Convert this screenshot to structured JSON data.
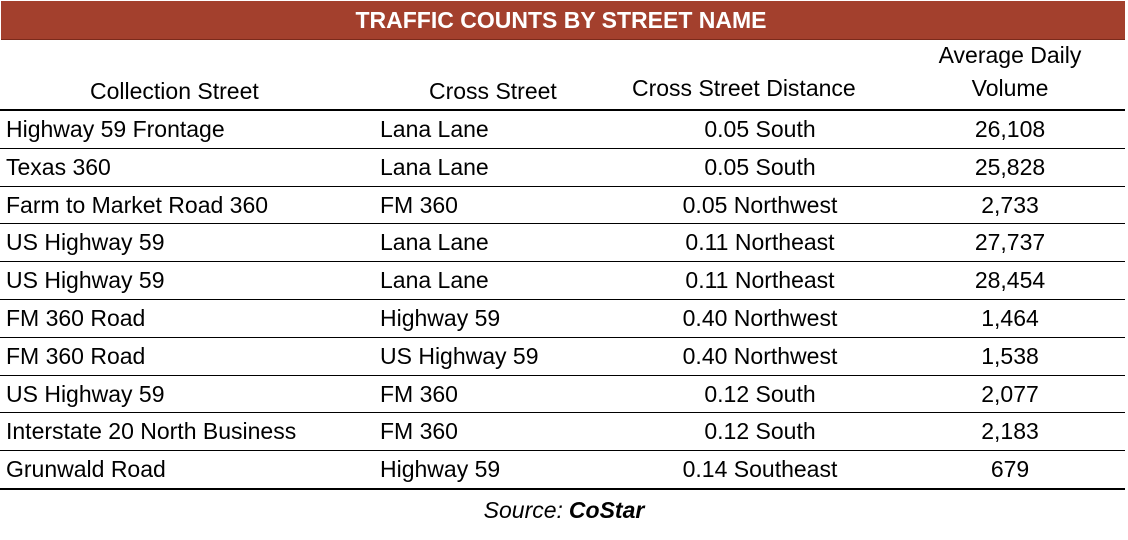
{
  "title": "TRAFFIC COUNTS BY STREET NAME",
  "colors": {
    "title_bar": "#a3402d",
    "title_text": "#ffffff",
    "rules": "#000000"
  },
  "columns": {
    "collection_street": "Collection Street",
    "cross_street": "Cross Street",
    "cross_street_distance": "Cross Street Distance",
    "average_daily_volume_line1": "Average Daily",
    "average_daily_volume_line2": "Volume"
  },
  "rows": [
    {
      "collection": "Highway 59 Frontage",
      "cross": "Lana Lane",
      "distance": "0.05 South",
      "volume": "26,108"
    },
    {
      "collection": "Texas 360",
      "cross": "Lana Lane",
      "distance": "0.05 South",
      "volume": "25,828"
    },
    {
      "collection": "Farm to Market Road 360",
      "cross": "FM 360",
      "distance": "0.05 Northwest",
      "volume": "2,733"
    },
    {
      "collection": "US Highway 59",
      "cross": "Lana Lane",
      "distance": "0.11 Northeast",
      "volume": "27,737"
    },
    {
      "collection": "US Highway 59",
      "cross": "Lana Lane",
      "distance": "0.11 Northeast",
      "volume": "28,454"
    },
    {
      "collection": "FM 360 Road",
      "cross": "Highway 59",
      "distance": "0.40 Northwest",
      "volume": "1,464"
    },
    {
      "collection": "FM 360 Road",
      "cross": "US Highway 59",
      "distance": "0.40 Northwest",
      "volume": "1,538"
    },
    {
      "collection": "US Highway 59",
      "cross": "FM 360",
      "distance": "0.12 South",
      "volume": "2,077"
    },
    {
      "collection": "Interstate 20 North Business",
      "cross": "FM 360",
      "distance": "0.12 South",
      "volume": "2,183"
    },
    {
      "collection": "Grunwald Road",
      "cross": "Highway 59",
      "distance": "0.14 Southeast",
      "volume": "679"
    }
  ],
  "source": {
    "label": "Source:",
    "brand": "CoStar"
  }
}
